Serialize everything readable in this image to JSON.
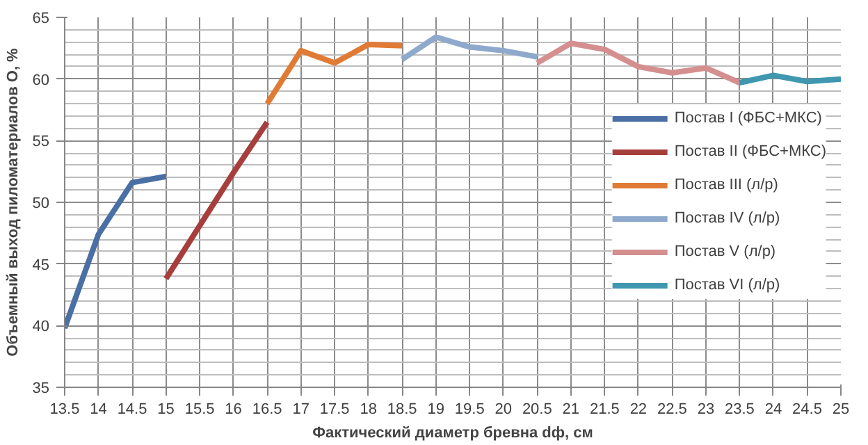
{
  "chart_data": {
    "type": "line",
    "xlabel": "Фактический диаметр бревна dф, см",
    "ylabel": "Объемный выход пиломатериалов О, %",
    "xlim": [
      13.5,
      25
    ],
    "ylim": [
      35,
      65
    ],
    "xticks": [
      13.5,
      14,
      14.5,
      15,
      15.5,
      16,
      16.5,
      17,
      17.5,
      18,
      18.5,
      19,
      19.5,
      20,
      20.5,
      21,
      21.5,
      22,
      22.5,
      23,
      23.5,
      24,
      24.5,
      25
    ],
    "yticks": [
      35,
      40,
      45,
      50,
      55,
      60,
      65
    ],
    "grid": true,
    "legend": "right",
    "marker": "none",
    "line_style": "solid",
    "series": [
      {
        "name": "Постав I (ФБС+МКС)",
        "color": "#4a6fa5",
        "x": [
          13.5,
          14,
          14.5,
          15
        ],
        "values": [
          39.8,
          47.4,
          51.6,
          52.1
        ]
      },
      {
        "name": "Постав II (ФБС+МКС)",
        "color": "#a63f3c",
        "x": [
          15,
          15.5,
          16,
          16.5
        ],
        "values": [
          43.8,
          48.1,
          52.4,
          56.5
        ]
      },
      {
        "name": "Постав III (л/р)",
        "color": "#e07b35",
        "x": [
          16.5,
          17,
          17.5,
          18,
          18.5
        ],
        "values": [
          58.0,
          62.3,
          61.3,
          62.8,
          62.7
        ]
      },
      {
        "name": "Постав IV (л/р)",
        "color": "#8fa9cc",
        "x": [
          18.5,
          19,
          19.5,
          20,
          20.5
        ],
        "values": [
          61.6,
          63.4,
          62.6,
          62.3,
          61.8
        ]
      },
      {
        "name": "Постав V (л/р)",
        "color": "#d48f8e",
        "x": [
          20.5,
          21,
          21.5,
          22,
          22.5,
          23,
          23.5
        ],
        "values": [
          61.3,
          62.9,
          62.4,
          61.0,
          60.5,
          60.9,
          59.7
        ]
      },
      {
        "name": "Постав VI (л/р)",
        "color": "#3f97b0",
        "x": [
          23.5,
          24,
          24.5,
          25
        ],
        "values": [
          59.7,
          60.3,
          59.8,
          60.0
        ]
      }
    ]
  }
}
